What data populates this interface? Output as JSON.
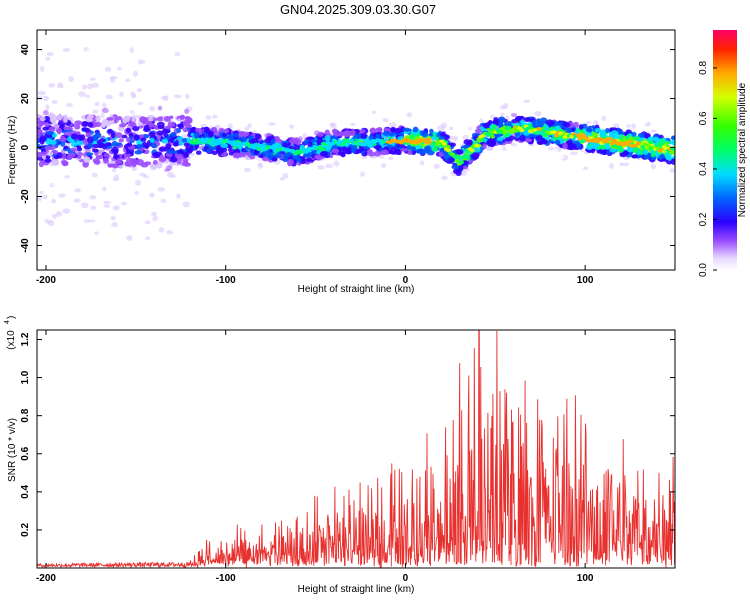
{
  "title": "GN04.2025.309.03.30.G07",
  "chart_data": [
    {
      "type": "heatmap",
      "name": "spectrogram",
      "xlabel": "Height of straight line (km)",
      "ylabel": "Frequency (Hz)",
      "xlim": [
        -205,
        150
      ],
      "ylim": [
        -50,
        48
      ],
      "xticks": [
        -200,
        -100,
        0,
        100
      ],
      "yticks": [
        -40,
        -20,
        0,
        20,
        40
      ],
      "colorbar": {
        "label": "Normalized spectral amplitude",
        "range": [
          0,
          0.95
        ],
        "ticks": [
          0.0,
          0.2,
          0.4,
          0.6,
          0.8
        ],
        "tick_labels": [
          "0.0",
          "0.2",
          "0.4",
          "0.6",
          "0.8"
        ]
      },
      "ridge": {
        "x": [
          -205,
          -180,
          -150,
          -120,
          -100,
          -80,
          -60,
          -40,
          -20,
          0,
          20,
          30,
          45,
          65,
          80,
          100,
          120,
          150
        ],
        "y": [
          3,
          3,
          2,
          3,
          2,
          0,
          -2,
          2,
          2,
          3,
          2,
          -6,
          6,
          8,
          6,
          4,
          2,
          -1
        ]
      }
    },
    {
      "type": "line",
      "name": "snr",
      "xlabel": "Height of straight line (km)",
      "ylabel": "SNR (10 * v/v)",
      "yscale_label": "(x10",
      "yscale_exp": "4",
      "xlim": [
        -205,
        150
      ],
      "ylim": [
        0,
        1.25
      ],
      "xticks": [
        -200,
        -100,
        0,
        100
      ],
      "yticks": [
        0.2,
        0.4,
        0.6,
        0.8,
        1.0,
        1.2
      ],
      "envelope": {
        "x": [
          -205,
          -120,
          -110,
          -100,
          -80,
          -60,
          -40,
          -20,
          0,
          20,
          40,
          55,
          70,
          90,
          110,
          130,
          150
        ],
        "y": [
          0.02,
          0.03,
          0.1,
          0.12,
          0.16,
          0.22,
          0.3,
          0.35,
          0.42,
          0.55,
          0.85,
          0.9,
          0.7,
          0.65,
          0.55,
          0.5,
          0.5
        ]
      },
      "peak": {
        "x": 41,
        "y": 1.25
      }
    }
  ]
}
